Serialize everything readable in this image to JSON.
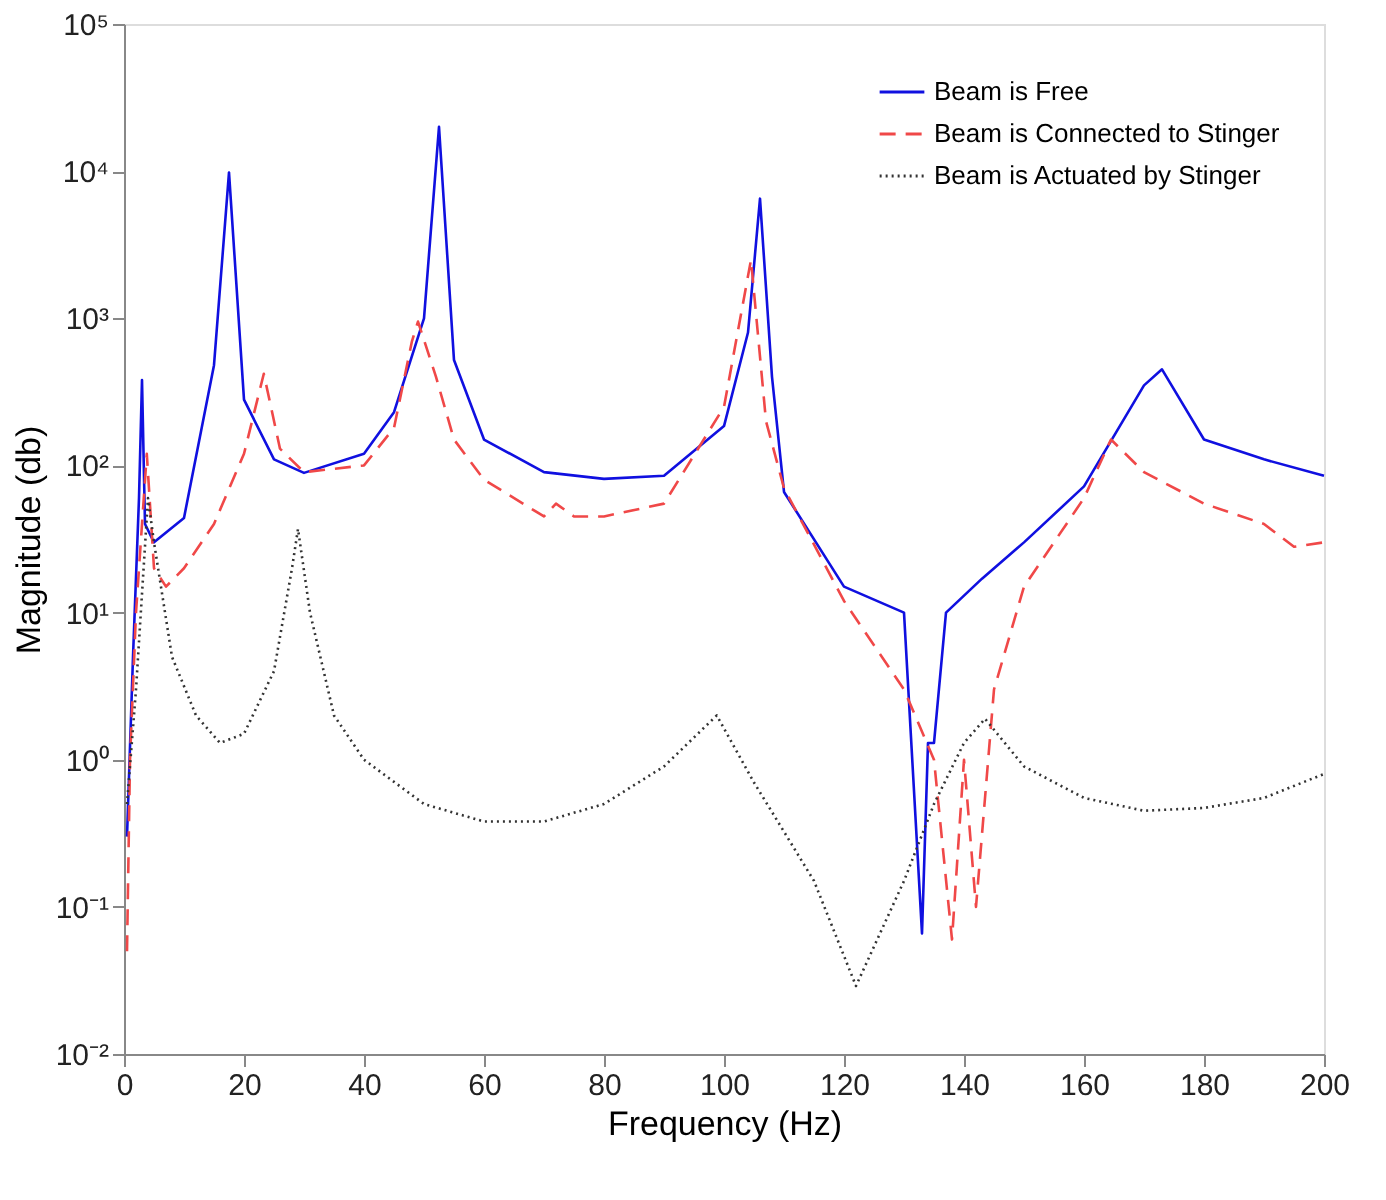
{
  "chart_data": {
    "type": "line",
    "xlabel": "Frequency (Hz)",
    "ylabel": "Magnitude (db)",
    "xlim": [
      0,
      200
    ],
    "xticks": [
      0,
      20,
      40,
      60,
      80,
      100,
      120,
      140,
      160,
      180,
      200
    ],
    "ylim": [
      0.01,
      100000
    ],
    "log": "y",
    "yticks": [
      {
        "value": 0.01,
        "label": "10⁻²"
      },
      {
        "value": 0.1,
        "label": "10⁻¹"
      },
      {
        "value": 1,
        "label": "10⁰"
      },
      {
        "value": 10,
        "label": "10¹"
      },
      {
        "value": 100,
        "label": "10²"
      },
      {
        "value": 1000,
        "label": "10³"
      },
      {
        "value": 10000,
        "label": "10⁴"
      },
      {
        "value": 100000,
        "label": "10⁵"
      }
    ],
    "grid": false,
    "legend": "top right",
    "marker": "none",
    "series": [
      {
        "name": "Beam is Free",
        "color": "#1010e0",
        "line_style": "solid",
        "x": [
          0.5,
          1.5,
          2.5,
          3,
          3.5,
          5,
          10,
          15,
          17.5,
          20,
          25,
          30,
          40,
          45,
          50,
          52.5,
          55,
          60,
          70,
          80,
          90,
          100,
          104,
          106,
          108,
          110,
          120,
          130,
          133,
          134,
          135,
          137,
          143,
          150,
          160,
          170,
          173,
          180,
          190,
          200
        ],
        "values": [
          0.3,
          5,
          60,
          380,
          40,
          30,
          44,
          480,
          9800,
          280,
          110,
          89,
          120,
          230,
          1000,
          20000,
          520,
          150,
          90,
          81,
          85,
          185,
          800,
          6500,
          400,
          66,
          15,
          10,
          0.066,
          1.3,
          1.3,
          10,
          17,
          30,
          72,
          350,
          450,
          150,
          110,
          85
        ]
      },
      {
        "name": "Beam is Connected to Stinger",
        "color": "#f04848",
        "line_style": "dashed",
        "x": [
          0.5,
          1,
          2,
          3.8,
          5,
          7,
          10,
          15,
          20,
          23.3,
          26,
          30,
          40,
          45,
          48,
          49,
          52,
          55,
          60,
          70,
          72,
          75,
          80,
          90,
          100,
          104.5,
          107,
          110,
          120,
          130,
          135,
          138,
          140,
          142,
          145,
          150,
          160,
          164.5,
          170,
          180,
          190,
          195,
          200
        ],
        "values": [
          0.05,
          1,
          10,
          120,
          20,
          15,
          20,
          40,
          120,
          420,
          130,
          90,
          100,
          180,
          700,
          950,
          400,
          150,
          80,
          45,
          55,
          45,
          45,
          55,
          250,
          2500,
          200,
          70,
          12,
          3,
          1,
          0.06,
          1,
          0.1,
          3,
          15,
          60,
          150,
          90,
          55,
          40,
          28,
          30
        ]
      },
      {
        "name": "Beam is Actuated by Stinger",
        "color": "#333333",
        "line_style": "dotted",
        "x": [
          0.5,
          2,
          4,
          5,
          8,
          12,
          16,
          20,
          25,
          28,
          29,
          31,
          35,
          40,
          50,
          60,
          70,
          80,
          90,
          98.8,
          105,
          115,
          122,
          130,
          135,
          140,
          143.5,
          150,
          160,
          170,
          180,
          190,
          200
        ],
        "values": [
          0.5,
          3,
          60,
          30,
          5,
          2,
          1.3,
          1.5,
          4,
          20,
          37,
          10,
          2,
          1,
          0.5,
          0.38,
          0.38,
          0.5,
          0.9,
          2,
          0.7,
          0.15,
          0.029,
          0.15,
          0.5,
          1.3,
          1.9,
          0.9,
          0.55,
          0.45,
          0.47,
          0.55,
          0.8
        ]
      }
    ]
  }
}
